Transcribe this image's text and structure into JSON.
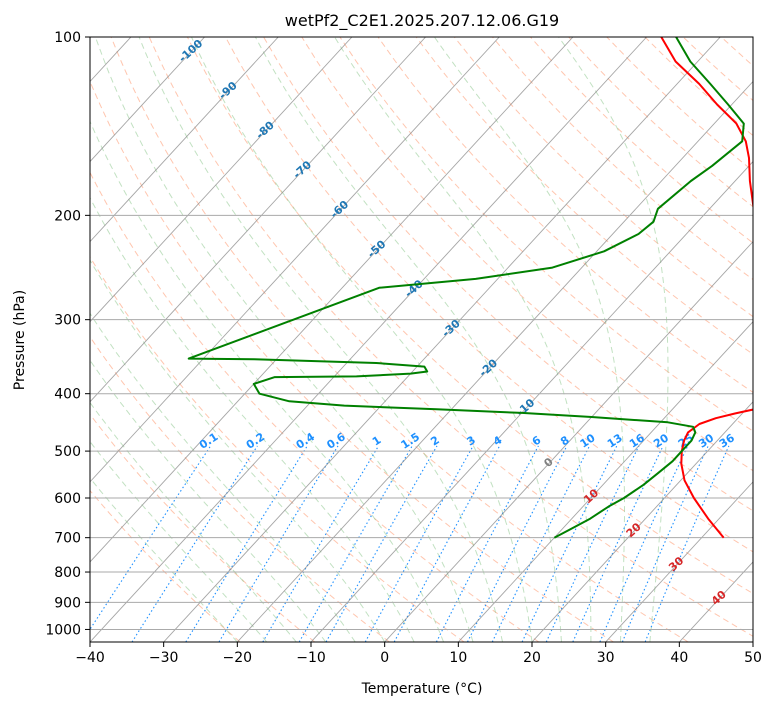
{
  "chart_data": {
    "type": "line",
    "title": "wetPf2_C2E1.2025.207.12.06.G19",
    "xlabel": "Temperature (°C)",
    "ylabel": "Pressure (hPa)",
    "xlim": [
      -40,
      50
    ],
    "ylim": [
      1050,
      100
    ],
    "y_scale": "log",
    "x_ticks": [
      "−40",
      "−30",
      "−20",
      "−10",
      "0",
      "10",
      "20",
      "30",
      "40",
      "50"
    ],
    "x_tick_values": [
      -40,
      -30,
      -20,
      -10,
      0,
      10,
      20,
      30,
      40,
      50
    ],
    "y_ticks": [
      "100",
      "200",
      "300",
      "400",
      "500",
      "600",
      "700",
      "800",
      "900",
      "1000"
    ],
    "y_tick_values": [
      100,
      200,
      300,
      400,
      500,
      600,
      700,
      800,
      900,
      1000
    ],
    "grid": true,
    "colors": {
      "temperature": "#ff0000",
      "dewpoint": "#008000",
      "isotherm": "#888888",
      "dry_adiabat": "#ffa07a",
      "moist_adiabat": "#90c890",
      "mixing_ratio": "#1e90ff",
      "neg_isotherm_label": "#1f77b4",
      "pos_isotherm_label": "#d62728",
      "zero_isotherm_label": "#808080"
    },
    "series": [
      {
        "key": "temperature",
        "points": [
          [
            33.0,
            700
          ],
          [
            28.5,
            650
          ],
          [
            24.0,
            600
          ],
          [
            20.5,
            560
          ],
          [
            18.0,
            525
          ],
          [
            16.5,
            500
          ],
          [
            15.5,
            480
          ],
          [
            15.0,
            465
          ],
          [
            15.5,
            450
          ],
          [
            17.0,
            440
          ],
          [
            19.0,
            432
          ],
          [
            22.0,
            422
          ],
          [
            21.0,
            400
          ],
          [
            19.5,
            385
          ],
          [
            18.5,
            375
          ],
          [
            16.5,
            350
          ],
          [
            14.5,
            325
          ],
          [
            11.0,
            300
          ],
          [
            7.5,
            275
          ],
          [
            4.5,
            250
          ],
          [
            2.0,
            230
          ],
          [
            -1.0,
            210
          ],
          [
            -4.0,
            195
          ],
          [
            -8.0,
            175
          ],
          [
            -11.0,
            160
          ],
          [
            -13.5,
            150
          ],
          [
            -17.0,
            140
          ],
          [
            -22.0,
            130
          ],
          [
            -27.0,
            120
          ],
          [
            -33.0,
            110
          ],
          [
            -38.0,
            100
          ]
        ]
      },
      {
        "key": "dewpoint",
        "points": [
          [
            10.0,
            700
          ],
          [
            11.0,
            680
          ],
          [
            12.5,
            650
          ],
          [
            13.5,
            620
          ],
          [
            14.5,
            600
          ],
          [
            15.5,
            570
          ],
          [
            16.0,
            545
          ],
          [
            16.5,
            520
          ],
          [
            16.5,
            500
          ],
          [
            16.5,
            480
          ],
          [
            16.0,
            465
          ],
          [
            15.0,
            455
          ],
          [
            11.0,
            447
          ],
          [
            0.0,
            438
          ],
          [
            -10.0,
            431
          ],
          [
            -22.0,
            425
          ],
          [
            -35.0,
            419
          ],
          [
            -43.0,
            412
          ],
          [
            -48.0,
            400
          ],
          [
            -50.0,
            385
          ],
          [
            -48.0,
            375
          ],
          [
            -37.0,
            374
          ],
          [
            -30.0,
            370
          ],
          [
            -28.0,
            367
          ],
          [
            -29.0,
            360
          ],
          [
            -36.0,
            355
          ],
          [
            -53.0,
            350
          ],
          [
            -62.0,
            349
          ],
          [
            -45.0,
            265
          ],
          [
            -33.0,
            256
          ],
          [
            -24.0,
            245
          ],
          [
            -19.0,
            230
          ],
          [
            -16.5,
            215
          ],
          [
            -16.0,
            205
          ],
          [
            -17.0,
            195
          ],
          [
            -16.0,
            175
          ],
          [
            -15.0,
            165
          ],
          [
            -14.0,
            150
          ],
          [
            -16.0,
            140
          ],
          [
            -20.5,
            130
          ],
          [
            -25.5,
            120
          ],
          [
            -31.0,
            110
          ],
          [
            -36.0,
            100
          ]
        ]
      }
    ],
    "isotherm_labels": [
      "-100",
      "-90",
      "-80",
      "-70",
      "-60",
      "-50",
      "-40",
      "-30",
      "-20",
      "-10",
      "0",
      "10",
      "20",
      "30",
      "40"
    ],
    "isotherm_label_values": [
      -100,
      -90,
      -80,
      -70,
      -60,
      -50,
      -40,
      -30,
      -20,
      -10,
      0,
      10,
      20,
      30,
      40
    ],
    "mixing_ratio_labels": [
      "0.1",
      "0.2",
      "0.4",
      "0.6",
      "1",
      "1.5",
      "2",
      "3",
      "4",
      "6",
      "8",
      "10",
      "13",
      "16",
      "20",
      "25",
      "30",
      "36"
    ],
    "mixing_ratio_values": [
      0.1,
      0.2,
      0.4,
      0.6,
      1,
      1.5,
      2,
      3,
      4,
      6,
      8,
      10,
      13,
      16,
      20,
      25,
      30,
      36
    ]
  }
}
